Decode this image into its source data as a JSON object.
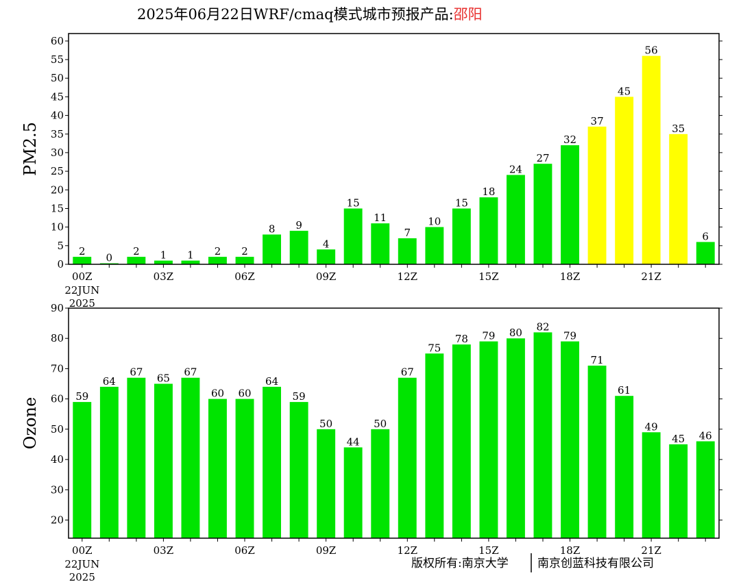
{
  "header": {
    "title": "2025年06月22日WRF/cmaq模式城市预报产品:",
    "city": "邵阳",
    "title_color": "#000000",
    "city_color": "#e8302f"
  },
  "footer": {
    "left": "版权所有:南京大学",
    "right": "南京创蓝科技有限公司"
  },
  "colors": {
    "green": "#00e400",
    "yellow": "#ffff00"
  },
  "chart_data": [
    {
      "type": "bar",
      "ylabel": "PM2.5",
      "ylim": [
        0,
        62
      ],
      "yticks": [
        0,
        5,
        10,
        15,
        20,
        25,
        30,
        35,
        40,
        45,
        50,
        55,
        60
      ],
      "x_tick_labels": [
        "00Z",
        "03Z",
        "06Z",
        "09Z",
        "12Z",
        "15Z",
        "18Z",
        "21Z"
      ],
      "x_start_label": [
        "22JUN",
        "2025"
      ],
      "grid": false,
      "values": [
        2,
        0,
        2,
        1,
        1,
        2,
        2,
        8,
        9,
        4,
        15,
        11,
        7,
        10,
        15,
        18,
        24,
        27,
        32,
        37,
        45,
        56,
        35,
        6
      ],
      "bar_colors": [
        "green",
        "green",
        "green",
        "green",
        "green",
        "green",
        "green",
        "green",
        "green",
        "green",
        "green",
        "green",
        "green",
        "green",
        "green",
        "green",
        "green",
        "green",
        "green",
        "yellow",
        "yellow",
        "yellow",
        "yellow",
        "green"
      ]
    },
    {
      "type": "bar",
      "ylabel": "Ozone",
      "ylim": [
        14,
        90
      ],
      "yticks": [
        20,
        30,
        40,
        50,
        60,
        70,
        80,
        90
      ],
      "x_tick_labels": [
        "00Z",
        "03Z",
        "06Z",
        "09Z",
        "12Z",
        "15Z",
        "18Z",
        "21Z"
      ],
      "x_start_label": [
        "22JUN",
        "2025"
      ],
      "grid": false,
      "values": [
        59,
        64,
        67,
        65,
        67,
        60,
        60,
        64,
        59,
        50,
        44,
        50,
        67,
        75,
        78,
        79,
        80,
        82,
        79,
        71,
        61,
        49,
        45,
        46
      ],
      "bar_colors": [
        "green",
        "green",
        "green",
        "green",
        "green",
        "green",
        "green",
        "green",
        "green",
        "green",
        "green",
        "green",
        "green",
        "green",
        "green",
        "green",
        "green",
        "green",
        "green",
        "green",
        "green",
        "green",
        "green",
        "green"
      ]
    }
  ]
}
